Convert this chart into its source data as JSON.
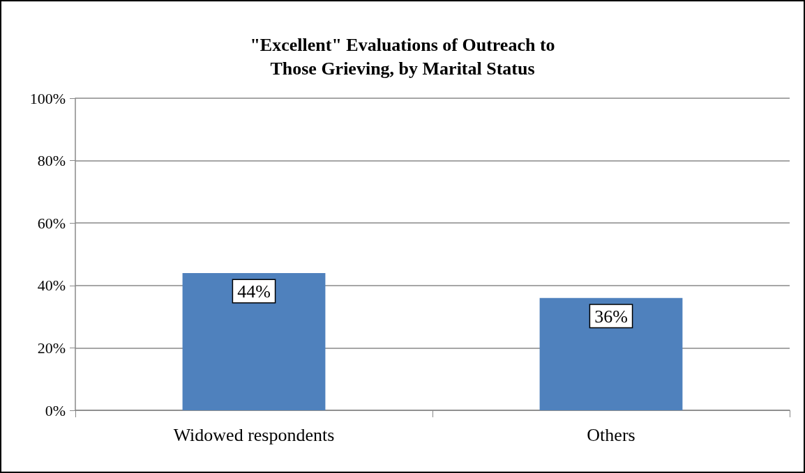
{
  "chart_data": {
    "type": "bar",
    "title": "\"Excellent\" Evaluations of Outreach to\nThose Grieving, by Marital Status",
    "categories": [
      "Widowed respondents",
      "Others"
    ],
    "values": [
      44,
      36
    ],
    "value_labels": [
      "44%",
      "36%"
    ],
    "color": "#4f81bd",
    "ylim": [
      0,
      100
    ],
    "yticks": [
      {
        "value": 0,
        "label": "0%"
      },
      {
        "value": 20,
        "label": "20%"
      },
      {
        "value": 40,
        "label": "40%"
      },
      {
        "value": 60,
        "label": "60%"
      },
      {
        "value": 80,
        "label": "80%"
      },
      {
        "value": 100,
        "label": "100%"
      }
    ],
    "grid": true
  }
}
